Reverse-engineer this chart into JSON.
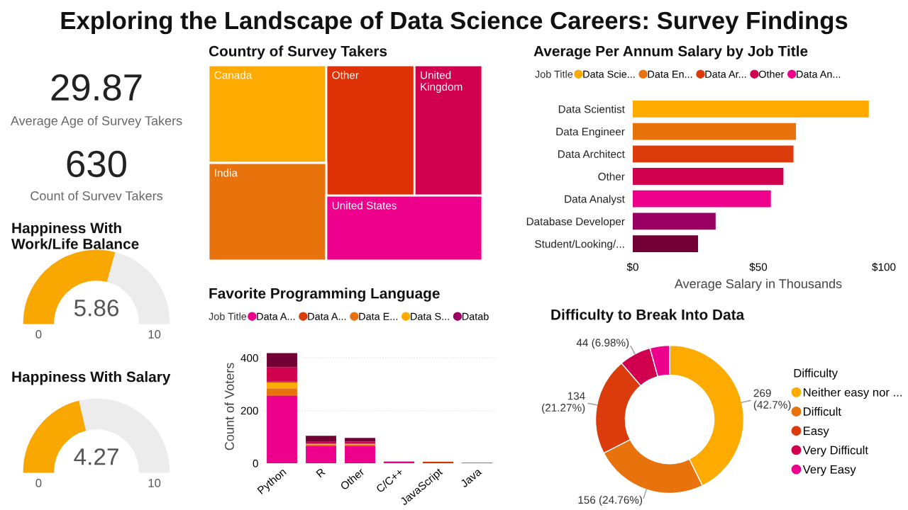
{
  "chart_data": [
    {
      "type": "other",
      "title": "Exploring the Landscape of Data Science Careers: Survey Findings",
      "annotations": [
        "29.87",
        "Average Age of Survey Takers",
        "630",
        "Count of Survev Takers"
      ]
    },
    {
      "type": "donut",
      "title": "Happiness With\nWork/Life Balance",
      "categories": [
        null,
        null
      ],
      "values": [
        5.86,
        4.14
      ],
      "colors": [
        "#f8a800",
        "#ececec"
      ],
      "value_labels": [
        "5.86",
        null
      ],
      "annotations": [
        "0",
        "10"
      ]
    },
    {
      "type": "donut",
      "title": "Happiness With Salary",
      "categories": [
        null,
        null
      ],
      "values": [
        4.27,
        5.73
      ],
      "colors": [
        "#f8a800",
        "#ececec"
      ],
      "value_labels": [
        "4.27",
        null
      ],
      "annotations": [
        "0",
        "10"
      ]
    },
    {
      "type": "other",
      "title": "Country of Survey Takers",
      "categories": [
        "Canada",
        "Other",
        "United Kingdom",
        "India",
        "United States"
      ],
      "colors": [
        "#fdab00",
        "#e03207",
        "#d1004f",
        "#e8730c",
        "#ec008c"
      ]
    },
    {
      "type": "bar",
      "orientation": "horizontal",
      "stacked": true,
      "title": "Average Per Annum Salary by Job Title",
      "xlabel": "Average Salary in Thousands",
      "legend_title": "Job Title",
      "legend": "top",
      "grid": false,
      "categories": [
        "Data Scientist",
        "Data Engineer",
        "Data Architect",
        "Other",
        "Data Analyst",
        "Database Developer",
        "Student/Looking/..."
      ],
      "xlim": [
        0,
        100
      ],
      "xticks": [
        {
          "value": 0,
          "label": "$0"
        },
        {
          "value": 50,
          "label": "$50"
        },
        {
          "value": 100,
          "label": "$100"
        }
      ],
      "series": [
        {
          "name": "Data Scie...",
          "color": "#fdab00",
          "values": [
            94,
            null,
            null,
            null,
            null,
            null,
            null
          ]
        },
        {
          "name": "Data En...",
          "color": "#e8730c",
          "values": [
            null,
            65,
            null,
            null,
            null,
            null,
            null
          ]
        },
        {
          "name": "Data Ar...",
          "color": "#dc3b0b",
          "values": [
            null,
            null,
            64,
            null,
            null,
            null,
            null
          ]
        },
        {
          "name": "Other",
          "color": "#d1004f",
          "values": [
            null,
            null,
            null,
            60,
            null,
            null,
            null
          ]
        },
        {
          "name": "Data An...",
          "color": "#ec008c",
          "values": [
            null,
            null,
            null,
            null,
            55,
            null,
            null
          ]
        },
        {
          "color": "#9a0062",
          "values": [
            null,
            null,
            null,
            null,
            null,
            33,
            null
          ]
        },
        {
          "color": "#720035",
          "values": [
            null,
            null,
            null,
            null,
            null,
            null,
            26
          ]
        }
      ]
    },
    {
      "type": "bar",
      "stacked": true,
      "title": "Favorite Programming Language",
      "ylabel": "Count of Voters",
      "legend_title": "Job Title",
      "legend": "top",
      "grid": "y",
      "categories": [
        "Python",
        "R",
        "Other",
        "C/C++",
        "JavaScript",
        "Java"
      ],
      "ylim": [
        0,
        430
      ],
      "yticks": [
        0,
        200,
        400
      ],
      "series": [
        {
          "name": "Data A...",
          "color": "#ec008c",
          "values": [
            256,
            65,
            65,
            7,
            3,
            2
          ]
        },
        {
          "name": "Data A...",
          "color": "#dc3b0b",
          "values": [
            2,
            2,
            2,
            null,
            3,
            null
          ]
        },
        {
          "name": "Data E...",
          "color": "#e8730c",
          "values": [
            26,
            4,
            4,
            null,
            null,
            null
          ]
        },
        {
          "name": "Data S...",
          "color": "#fdab00",
          "values": [
            23,
            3,
            3,
            null,
            null,
            null
          ]
        },
        {
          "name": "Datab",
          "color": "#9a0062",
          "values": [
            3,
            1,
            1,
            null,
            null,
            null
          ]
        },
        {
          "color": "#d1004f",
          "values": [
            55,
            6,
            7,
            null,
            null,
            null
          ]
        },
        {
          "color": "#720035",
          "values": [
            53,
            23,
            14,
            null,
            null,
            null
          ]
        }
      ]
    },
    {
      "type": "donut",
      "title": "Difficulty to Break Into Data",
      "legend_title": "Difficulty",
      "legend": "right",
      "categories": [
        "Neither easy nor ...",
        "Difficult",
        "Easy",
        "Very Difficult",
        "Very Easy"
      ],
      "values": [
        269,
        156,
        134,
        44,
        27
      ],
      "value_labels": [
        "269\n(42.7%)",
        "156 (24.76%)",
        "134\n(21.27%)",
        "44 (6.98%)",
        null
      ],
      "colors": [
        "#fdab00",
        "#e8730c",
        "#dc3b0b",
        "#d1004f",
        "#ec008c"
      ]
    }
  ]
}
